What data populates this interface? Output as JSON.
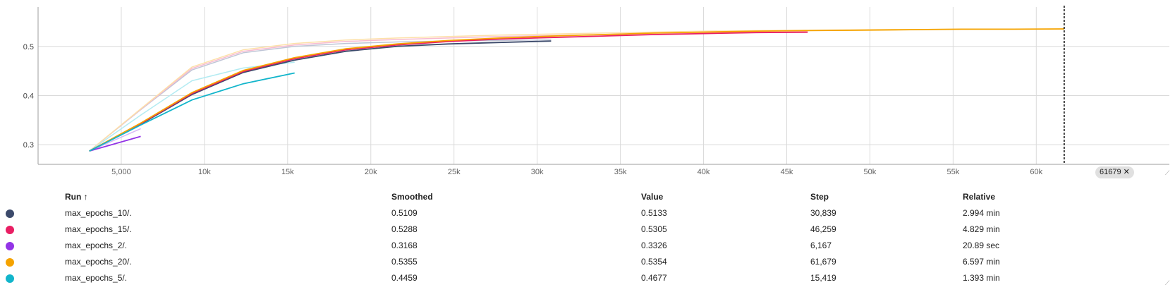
{
  "chart_data": {
    "type": "line",
    "xlim": [
      0,
      68000
    ],
    "ylim": [
      0.26,
      0.58
    ],
    "x_ticks": [
      {
        "value": 5000,
        "label": "5,000"
      },
      {
        "value": 10000,
        "label": "10k"
      },
      {
        "value": 15000,
        "label": "15k"
      },
      {
        "value": 20000,
        "label": "20k"
      },
      {
        "value": 25000,
        "label": "25k"
      },
      {
        "value": 30000,
        "label": "30k"
      },
      {
        "value": 35000,
        "label": "35k"
      },
      {
        "value": 40000,
        "label": "40k"
      },
      {
        "value": 45000,
        "label": "45k"
      },
      {
        "value": 50000,
        "label": "50k"
      },
      {
        "value": 55000,
        "label": "55k"
      },
      {
        "value": 60000,
        "label": "60k"
      }
    ],
    "y_ticks": [
      {
        "value": 0.3,
        "label": "0.3"
      },
      {
        "value": 0.4,
        "label": "0.4"
      },
      {
        "value": 0.5,
        "label": "0.5"
      }
    ],
    "grid": true,
    "cursor_step": 61679,
    "cursor_label": "61679",
    "series": [
      {
        "name": "max_epochs_10/.",
        "color": "#3c4a6b",
        "raw_color": "#bfc5d6",
        "x": [
          3084,
          6167,
          9251,
          12335,
          15419,
          18503,
          21587,
          24671,
          27755,
          30839
        ],
        "smoothed": [
          0.287,
          0.342,
          0.402,
          0.447,
          0.472,
          0.49,
          0.5,
          0.505,
          0.508,
          0.5109
        ],
        "raw": [
          0.287,
          0.371,
          0.452,
          0.487,
          0.5,
          0.506,
          0.509,
          0.511,
          0.512,
          0.5133
        ]
      },
      {
        "name": "max_epochs_15/.",
        "color": "#e91e63",
        "raw_color": "#f8bbd0",
        "x": [
          3084,
          6167,
          9251,
          12335,
          15419,
          18503,
          21587,
          24671,
          27755,
          30839,
          33923,
          37007,
          40091,
          43175,
          46259
        ],
        "smoothed": [
          0.287,
          0.343,
          0.404,
          0.449,
          0.475,
          0.493,
          0.503,
          0.51,
          0.515,
          0.518,
          0.521,
          0.524,
          0.526,
          0.528,
          0.5288
        ],
        "raw": [
          0.287,
          0.372,
          0.455,
          0.49,
          0.503,
          0.51,
          0.514,
          0.517,
          0.52,
          0.522,
          0.524,
          0.526,
          0.528,
          0.529,
          0.5305
        ]
      },
      {
        "name": "max_epochs_2/.",
        "color": "#9334e6",
        "raw_color": "#d7b8f5",
        "x": [
          3084,
          6167
        ],
        "smoothed": [
          0.287,
          0.3168
        ],
        "raw": [
          0.287,
          0.3326
        ]
      },
      {
        "name": "max_epochs_20/.",
        "color": "#f5a300",
        "raw_color": "#fde0a8",
        "x": [
          3084,
          6167,
          9251,
          12335,
          15419,
          18503,
          21587,
          24671,
          27755,
          30839,
          33923,
          37007,
          40091,
          43175,
          46259,
          49343,
          52427,
          55511,
          58595,
          61679
        ],
        "smoothed": [
          0.287,
          0.344,
          0.406,
          0.451,
          0.477,
          0.495,
          0.505,
          0.512,
          0.517,
          0.521,
          0.524,
          0.527,
          0.529,
          0.531,
          0.532,
          0.533,
          0.534,
          0.535,
          0.535,
          0.5355
        ],
        "raw": [
          0.287,
          0.373,
          0.458,
          0.493,
          0.506,
          0.513,
          0.517,
          0.52,
          0.523,
          0.525,
          0.527,
          0.529,
          0.531,
          0.532,
          0.533,
          0.534,
          0.5345,
          0.535,
          0.5352,
          0.5354
        ]
      },
      {
        "name": "max_epochs_5/.",
        "color": "#12b5cb",
        "raw_color": "#b3ebf2",
        "x": [
          3084,
          6167,
          9251,
          12335,
          15419
        ],
        "smoothed": [
          0.287,
          0.34,
          0.391,
          0.424,
          0.4459
        ],
        "raw": [
          0.287,
          0.36,
          0.43,
          0.456,
          0.4677
        ]
      }
    ]
  },
  "table": {
    "headers": {
      "run": "Run ↑",
      "smoothed": "Smoothed",
      "value": "Value",
      "step": "Step",
      "relative": "Relative"
    },
    "rows": [
      {
        "color": "#3c4a6b",
        "run": "max_epochs_10/.",
        "smoothed": "0.5109",
        "value": "0.5133",
        "step": "30,839",
        "relative": "2.994 min"
      },
      {
        "color": "#e91e63",
        "run": "max_epochs_15/.",
        "smoothed": "0.5288",
        "value": "0.5305",
        "step": "46,259",
        "relative": "4.829 min"
      },
      {
        "color": "#9334e6",
        "run": "max_epochs_2/.",
        "smoothed": "0.3168",
        "value": "0.3326",
        "step": "6,167",
        "relative": "20.89 sec"
      },
      {
        "color": "#f5a300",
        "run": "max_epochs_20/.",
        "smoothed": "0.5355",
        "value": "0.5354",
        "step": "61,679",
        "relative": "6.597 min"
      },
      {
        "color": "#12b5cb",
        "run": "max_epochs_5/.",
        "smoothed": "0.4459",
        "value": "0.4677",
        "step": "15,419",
        "relative": "1.393 min"
      }
    ]
  },
  "close_icon": "close-icon"
}
